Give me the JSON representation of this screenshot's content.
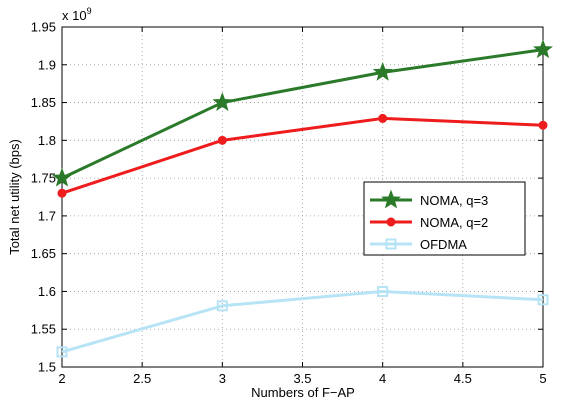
{
  "chart_data": {
    "type": "line",
    "title": "",
    "xlabel": "Numbers of F−AP",
    "ylabel": "Total net utility (bps)",
    "y_exponent": {
      "base": "x 10",
      "power": "9"
    },
    "xlim": [
      2,
      5
    ],
    "ylim": [
      1.5,
      1.95
    ],
    "x_ticks": [
      "2",
      "2.5",
      "3",
      "3.5",
      "4",
      "4.5",
      "5"
    ],
    "y_ticks": [
      "1.5",
      "1.55",
      "1.6",
      "1.65",
      "1.7",
      "1.75",
      "1.8",
      "1.85",
      "1.9",
      "1.95"
    ],
    "grid": true,
    "legend_position": "right-center",
    "x": [
      2,
      3,
      4,
      5
    ],
    "series": [
      {
        "name": "NOMA, q=3",
        "values": [
          1.75,
          1.85,
          1.89,
          1.92
        ],
        "color": "#2a7a2a",
        "marker": "star"
      },
      {
        "name": "NOMA, q=2",
        "values": [
          1.73,
          1.8,
          1.829,
          1.82
        ],
        "color": "#ee1c1c",
        "marker": "circle"
      },
      {
        "name": "OFDMA",
        "values": [
          1.52,
          1.581,
          1.6,
          1.589
        ],
        "color": "#b7e3f6",
        "marker": "square"
      }
    ]
  }
}
